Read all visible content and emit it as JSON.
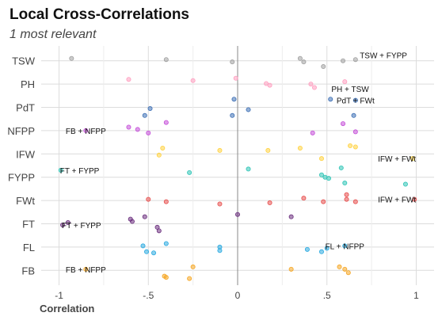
{
  "chart_data": {
    "type": "scatter",
    "title": "Local Cross-Correlations",
    "subtitle": "1 most relevant",
    "xlabel": "Correlation",
    "ylabel": "",
    "xlim": [
      -1.1,
      1.1
    ],
    "x_ticks": [
      -1,
      -0.5,
      0,
      0.5,
      1
    ],
    "x_tick_labels": [
      "-1",
      "-.5",
      "0",
      ".5",
      "1"
    ],
    "categories": [
      "TSW",
      "PH",
      "PdT",
      "NFPP",
      "IFW",
      "FYPP",
      "FWt",
      "FT",
      "FL",
      "FB"
    ],
    "series": [
      {
        "name": "TSW",
        "color": "#a0a0a0",
        "points": [
          [
            -0.93,
            0.1
          ],
          [
            -0.4,
            0.05
          ],
          [
            -0.03,
            -0.05
          ],
          [
            0.35,
            0.1
          ],
          [
            0.37,
            -0.05
          ],
          [
            0.48,
            -0.25
          ],
          [
            0.59,
            0
          ],
          [
            0.66,
            0.05
          ]
        ]
      },
      {
        "name": "PH",
        "color": "#ff9fc0",
        "points": [
          [
            -0.61,
            0.2
          ],
          [
            -0.25,
            0.15
          ],
          [
            -0.01,
            0.25
          ],
          [
            0.16,
            0.02
          ],
          [
            0.18,
            -0.05
          ],
          [
            0.41,
            0
          ],
          [
            0.43,
            -0.15
          ],
          [
            0.6,
            0.1
          ]
        ]
      },
      {
        "name": "PdT",
        "color": "#3d6fb5",
        "points": [
          [
            -0.49,
            -0.05
          ],
          [
            -0.52,
            -0.35
          ],
          [
            -0.02,
            0.35
          ],
          [
            -0.03,
            -0.35
          ],
          [
            0.06,
            -0.1
          ],
          [
            0.52,
            0.35
          ],
          [
            0.65,
            -0.35
          ],
          [
            0.66,
            0.3
          ]
        ]
      },
      {
        "name": "NFPP",
        "color": "#c44fd8",
        "points": [
          [
            -0.85,
            0
          ],
          [
            -0.61,
            0.15
          ],
          [
            -0.56,
            0.05
          ],
          [
            -0.4,
            0.35
          ],
          [
            -0.5,
            -0.1
          ],
          [
            0.42,
            -0.1
          ],
          [
            0.59,
            0.3
          ],
          [
            0.66,
            -0.05
          ]
        ]
      },
      {
        "name": "IFW",
        "color": "#ffd23f",
        "points": [
          [
            -0.44,
            -0.05
          ],
          [
            -0.42,
            0.25
          ],
          [
            -0.1,
            0.15
          ],
          [
            0.17,
            0.15
          ],
          [
            0.35,
            0.25
          ],
          [
            0.47,
            -0.2
          ],
          [
            0.63,
            0.35
          ],
          [
            0.66,
            0.3
          ],
          [
            0.98,
            -0.2
          ]
        ]
      },
      {
        "name": "FYPP",
        "color": "#2ec4b6",
        "points": [
          [
            -0.99,
            0.3
          ],
          [
            -0.27,
            0.2
          ],
          [
            0.06,
            0.35
          ],
          [
            0.47,
            0.1
          ],
          [
            0.49,
            0
          ],
          [
            0.51,
            -0.05
          ],
          [
            0.58,
            0.4
          ],
          [
            0.6,
            -0.25
          ],
          [
            0.94,
            -0.3
          ]
        ]
      },
      {
        "name": "FWt",
        "color": "#e8504f",
        "points": [
          [
            -0.5,
            0.05
          ],
          [
            -0.4,
            -0.05
          ],
          [
            -0.1,
            -0.15
          ],
          [
            0.18,
            -0.1
          ],
          [
            0.37,
            0.1
          ],
          [
            0.48,
            -0.05
          ],
          [
            0.61,
            0.25
          ],
          [
            0.61,
            0.05
          ],
          [
            0.66,
            -0.05
          ],
          [
            0.99,
            0.05
          ]
        ]
      },
      {
        "name": "FT",
        "color": "#6b2f7e",
        "points": [
          [
            -0.98,
            -0.05
          ],
          [
            -0.95,
            0.05
          ],
          [
            -0.6,
            0.2
          ],
          [
            -0.59,
            0.1
          ],
          [
            -0.52,
            0.3
          ],
          [
            -0.45,
            -0.15
          ],
          [
            -0.44,
            -0.3
          ],
          [
            0.0,
            0.4
          ],
          [
            0.3,
            0.3
          ]
        ]
      },
      {
        "name": "FL",
        "color": "#29a9e0",
        "points": [
          [
            -0.53,
            0.05
          ],
          [
            -0.51,
            -0.2
          ],
          [
            -0.47,
            -0.25
          ],
          [
            -0.4,
            0.15
          ],
          [
            -0.1,
            0
          ],
          [
            -0.1,
            -0.15
          ],
          [
            0.39,
            -0.1
          ],
          [
            0.47,
            -0.2
          ],
          [
            0.5,
            -0.05
          ],
          [
            0.6,
            0.05
          ]
        ]
      },
      {
        "name": "FB",
        "color": "#f5a623",
        "points": [
          [
            -0.85,
            0.05
          ],
          [
            -0.41,
            -0.25
          ],
          [
            -0.4,
            -0.3
          ],
          [
            -0.27,
            -0.35
          ],
          [
            -0.25,
            0.15
          ],
          [
            0.3,
            0.05
          ],
          [
            0.57,
            0.15
          ],
          [
            0.6,
            0.05
          ],
          [
            0.62,
            -0.1
          ]
        ]
      }
    ],
    "annotations": [
      {
        "text": "TSW + FYPP",
        "x": 0.94,
        "category": "TSW",
        "offset": 0.25
      },
      {
        "text": "PH + TSW",
        "x": 0.63,
        "category": "PH",
        "offset": -0.2
      },
      {
        "text": "PdT + FWt",
        "x": 0.66,
        "category": "PdT",
        "offset": 0.3
      },
      {
        "text": "FB + NFPP",
        "x": -0.85,
        "category": "NFPP",
        "offset": 0
      },
      {
        "text": "IFW + FWt",
        "x": 0.99,
        "category": "IFW",
        "offset": -0.2
      },
      {
        "text": "FT + FYPP",
        "x": -0.99,
        "category": "FYPP",
        "offset": 0.3
      },
      {
        "text": "IFW + FWt",
        "x": 0.99,
        "category": "FWt",
        "offset": 0.05
      },
      {
        "text": "FT + FYPP",
        "x": -0.98,
        "category": "FT",
        "offset": -0.05
      },
      {
        "text": "FL + NFPP",
        "x": 0.6,
        "category": "FL",
        "offset": 0.05
      },
      {
        "text": "FB + NFPP",
        "x": -0.85,
        "category": "FB",
        "offset": 0.05
      }
    ]
  }
}
